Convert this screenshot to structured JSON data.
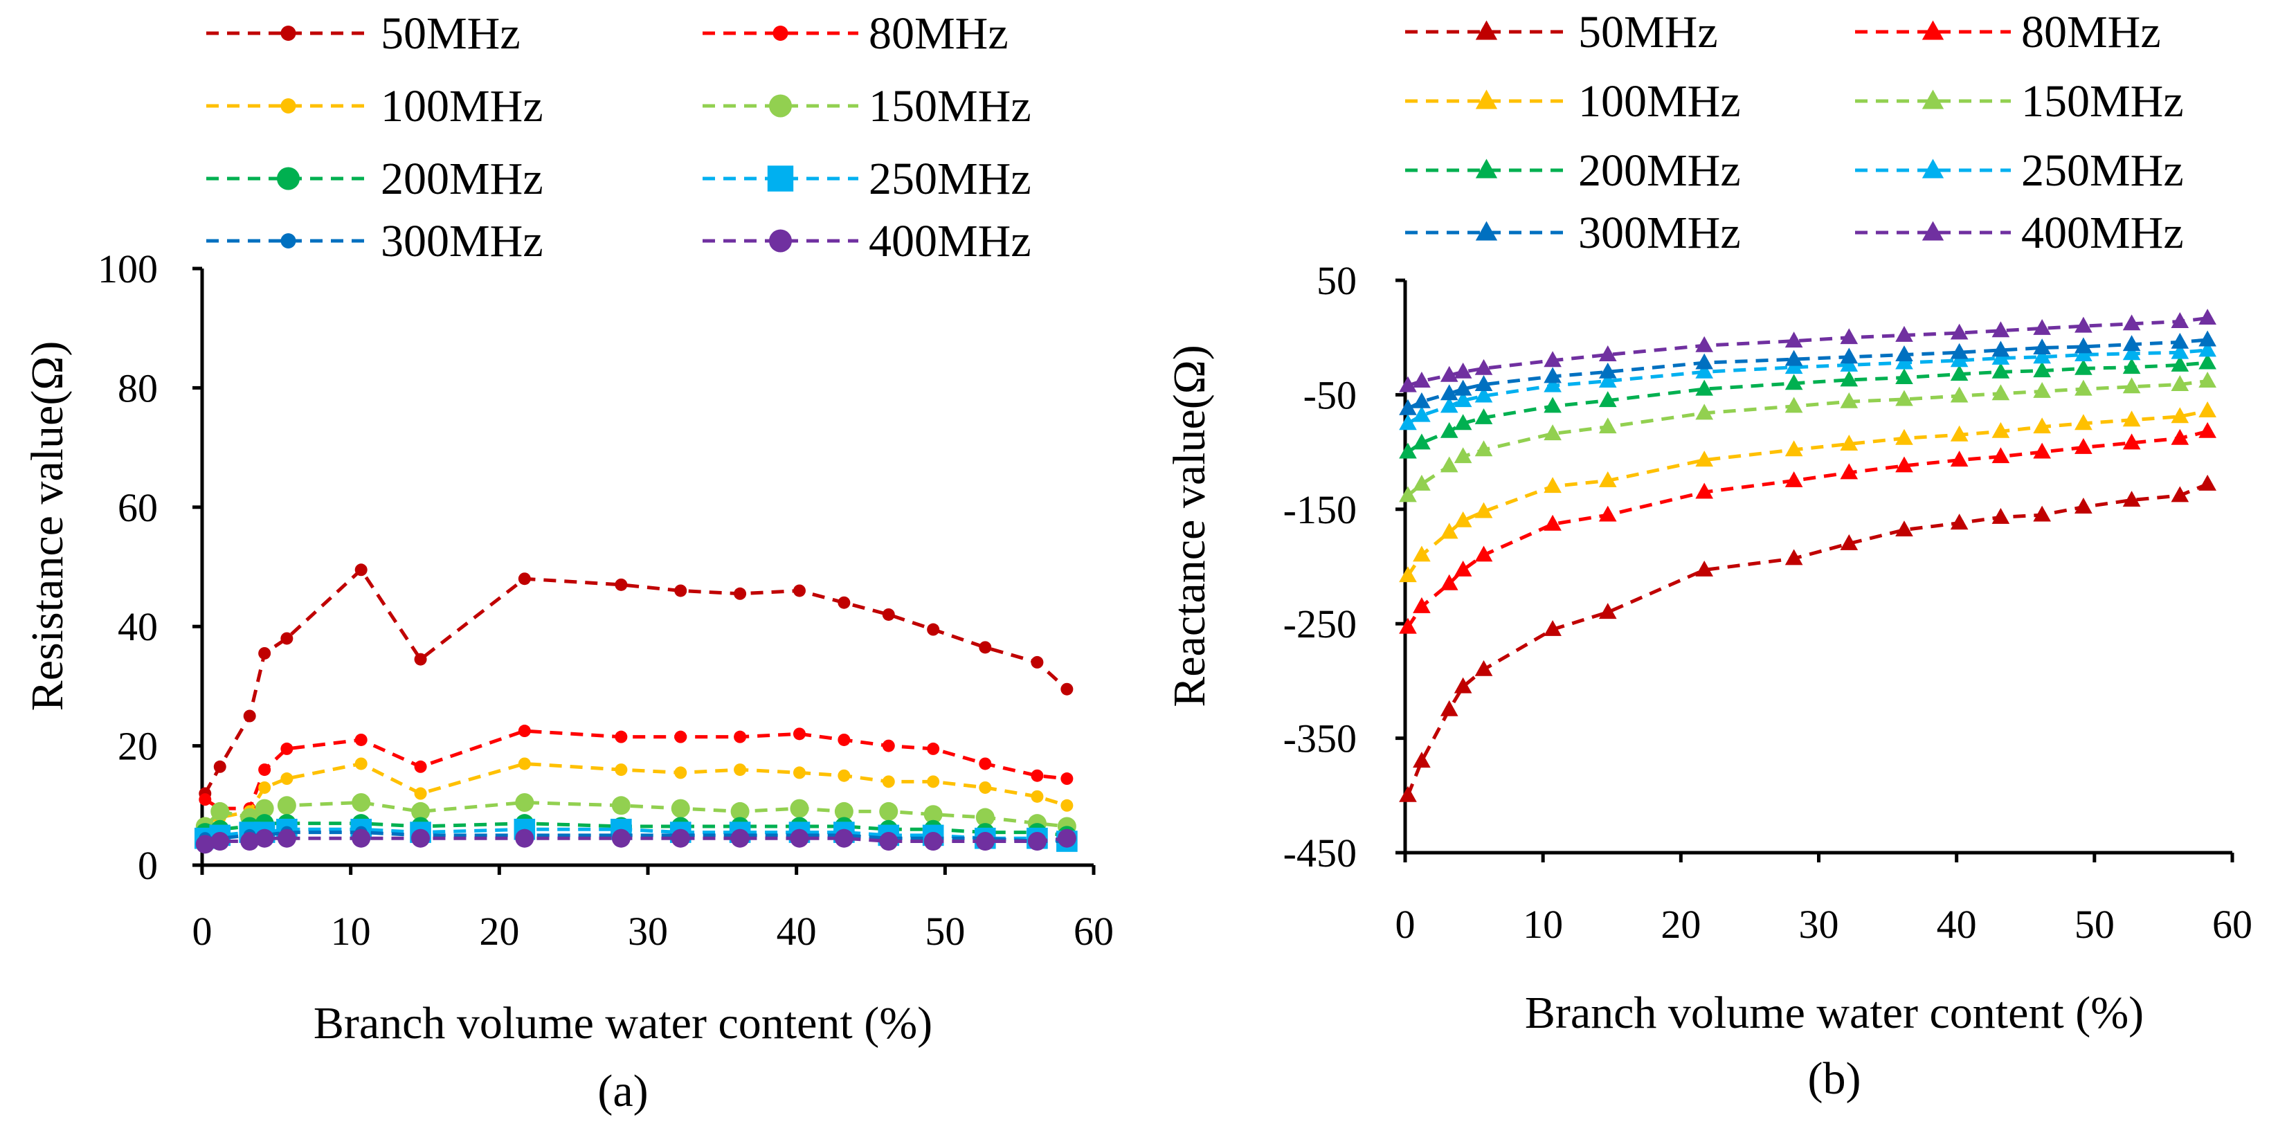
{
  "chart_data": [
    {
      "type": "line",
      "caption": "(a)",
      "xlabel": "Branch volume water content (%)",
      "ylabel": "Resistance value(Ω)",
      "xlim": [
        0,
        60
      ],
      "ylim": [
        0,
        100
      ],
      "xticks": [
        "0",
        "10",
        "20",
        "30",
        "40",
        "50",
        "60"
      ],
      "yticks": [
        "0",
        "20",
        "40",
        "60",
        "80",
        "100"
      ],
      "grid": false,
      "legend": "top, 2 columns",
      "x": [
        0.2,
        1.2,
        3.2,
        4.2,
        5.7,
        10.7,
        14.7,
        21.7,
        28.2,
        32.2,
        36.2,
        40.2,
        43.2,
        46.2,
        49.2,
        52.7,
        56.2,
        58.2
      ],
      "series": [
        {
          "name": "50MHz",
          "color": "#C00000",
          "marker": "circle-small",
          "values": [
            12,
            16.5,
            25,
            35.5,
            38,
            49.5,
            34.5,
            48,
            47,
            46,
            45.5,
            46,
            44,
            42,
            39.5,
            36.5,
            34,
            29.5
          ]
        },
        {
          "name": "80MHz",
          "color": "#FF0000",
          "marker": "circle-small",
          "values": [
            11,
            9.5,
            9.5,
            16,
            19.5,
            21,
            16.5,
            22.5,
            21.5,
            21.5,
            21.5,
            22,
            21,
            20,
            19.5,
            17,
            15,
            14.5
          ]
        },
        {
          "name": "100MHz",
          "color": "#FFC000",
          "marker": "circle-small",
          "values": [
            7,
            8,
            9,
            13,
            14.5,
            17,
            12,
            17,
            16,
            15.5,
            16,
            15.5,
            15,
            14,
            14,
            13,
            11.5,
            10
          ]
        },
        {
          "name": "150MHz",
          "color": "#92D050",
          "marker": "circle",
          "values": [
            6.5,
            9,
            8,
            9.5,
            10,
            10.5,
            9,
            10.5,
            10,
            9.5,
            9,
            9.5,
            9,
            9,
            8.5,
            8,
            7,
            6.5
          ]
        },
        {
          "name": "200MHz",
          "color": "#00B050",
          "marker": "circle",
          "values": [
            5.5,
            6,
            6.5,
            7,
            7,
            7,
            6.5,
            7,
            6.5,
            6.5,
            6.5,
            6.5,
            6.5,
            6,
            6,
            5.5,
            5.5,
            5
          ]
        },
        {
          "name": "250MHz",
          "color": "#00B0F0",
          "marker": "square",
          "values": [
            4.5,
            5,
            5.5,
            5.5,
            6,
            6,
            5.5,
            6,
            6,
            5.5,
            5.5,
            5.5,
            5.5,
            5,
            5,
            4.5,
            4.5,
            4
          ]
        },
        {
          "name": "300MHz",
          "color": "#0070C0",
          "marker": "circle-small",
          "values": [
            4.5,
            4.5,
            5,
            5,
            5.5,
            5.5,
            5,
            5,
            5,
            5,
            5,
            5,
            5,
            4.5,
            4.5,
            4.5,
            4,
            4
          ]
        },
        {
          "name": "400MHz",
          "color": "#7030A0",
          "marker": "circle",
          "values": [
            3.5,
            4,
            4,
            4.5,
            4.5,
            4.5,
            4.5,
            4.5,
            4.5,
            4.5,
            4.5,
            4.5,
            4.5,
            4,
            4,
            4,
            4,
            4.5
          ]
        }
      ]
    },
    {
      "type": "line",
      "caption": "(b)",
      "xlabel": "Branch volume water content (%)",
      "ylabel": "Reactance value(Ω)",
      "xlim": [
        0,
        60
      ],
      "ylim": [
        -450,
        50
      ],
      "xticks": [
        "0",
        "10",
        "20",
        "30",
        "40",
        "50",
        "60"
      ],
      "yticks": [
        "50",
        "-50",
        "-150",
        "-250",
        "-350",
        "-450"
      ],
      "grid": false,
      "legend": "top, 2 columns",
      "x": [
        0.2,
        1.2,
        3.2,
        4.2,
        5.7,
        10.7,
        14.7,
        21.7,
        28.2,
        32.2,
        36.2,
        40.2,
        43.2,
        46.2,
        49.2,
        52.7,
        56.2,
        58.2
      ],
      "series": [
        {
          "name": "50MHz",
          "color": "#C00000",
          "marker": "triangle",
          "values": [
            -400,
            -370,
            -325,
            -305,
            -290,
            -255,
            -240,
            -203,
            -193,
            -180,
            -168,
            -162,
            -157,
            -155,
            -148,
            -142,
            -138,
            -128
          ]
        },
        {
          "name": "80MHz",
          "color": "#FF0000",
          "marker": "triangle",
          "values": [
            -253,
            -235,
            -215,
            -203,
            -190,
            -163,
            -155,
            -135,
            -125,
            -118,
            -112,
            -107,
            -104,
            -100,
            -96,
            -92,
            -88,
            -82
          ]
        },
        {
          "name": "100MHz",
          "color": "#FFC000",
          "marker": "triangle",
          "values": [
            -208,
            -190,
            -170,
            -160,
            -152,
            -130,
            -125,
            -107,
            -98,
            -93,
            -88,
            -85,
            -82,
            -78,
            -75,
            -72,
            -69,
            -64
          ]
        },
        {
          "name": "150MHz",
          "color": "#92D050",
          "marker": "triangle",
          "values": [
            -138,
            -128,
            -112,
            -104,
            -98,
            -84,
            -78,
            -66,
            -60,
            -56,
            -54,
            -51,
            -49,
            -47,
            -45,
            -43,
            -41,
            -38
          ]
        },
        {
          "name": "200MHz",
          "color": "#00B050",
          "marker": "triangle",
          "values": [
            -100,
            -92,
            -82,
            -75,
            -70,
            -60,
            -55,
            -45,
            -40,
            -37,
            -35,
            -32,
            -30,
            -29,
            -27,
            -26,
            -24,
            -22
          ]
        },
        {
          "name": "250MHz",
          "color": "#00B0F0",
          "marker": "triangle",
          "values": [
            -75,
            -68,
            -60,
            -55,
            -51,
            -42,
            -38,
            -30,
            -26,
            -24,
            -22,
            -20,
            -18,
            -17,
            -15,
            -14,
            -13,
            -11
          ]
        },
        {
          "name": "300MHz",
          "color": "#0070C0",
          "marker": "triangle",
          "values": [
            -62,
            -56,
            -49,
            -45,
            -41,
            -34,
            -30,
            -22,
            -19,
            -17,
            -15,
            -13,
            -11,
            -9,
            -8,
            -6,
            -4,
            -2
          ]
        },
        {
          "name": "400MHz",
          "color": "#7030A0",
          "marker": "triangle",
          "values": [
            -42,
            -38,
            -33,
            -30,
            -27,
            -20,
            -15,
            -7,
            -3,
            0,
            2,
            4,
            6,
            8,
            10,
            12,
            14,
            17
          ]
        }
      ]
    }
  ]
}
